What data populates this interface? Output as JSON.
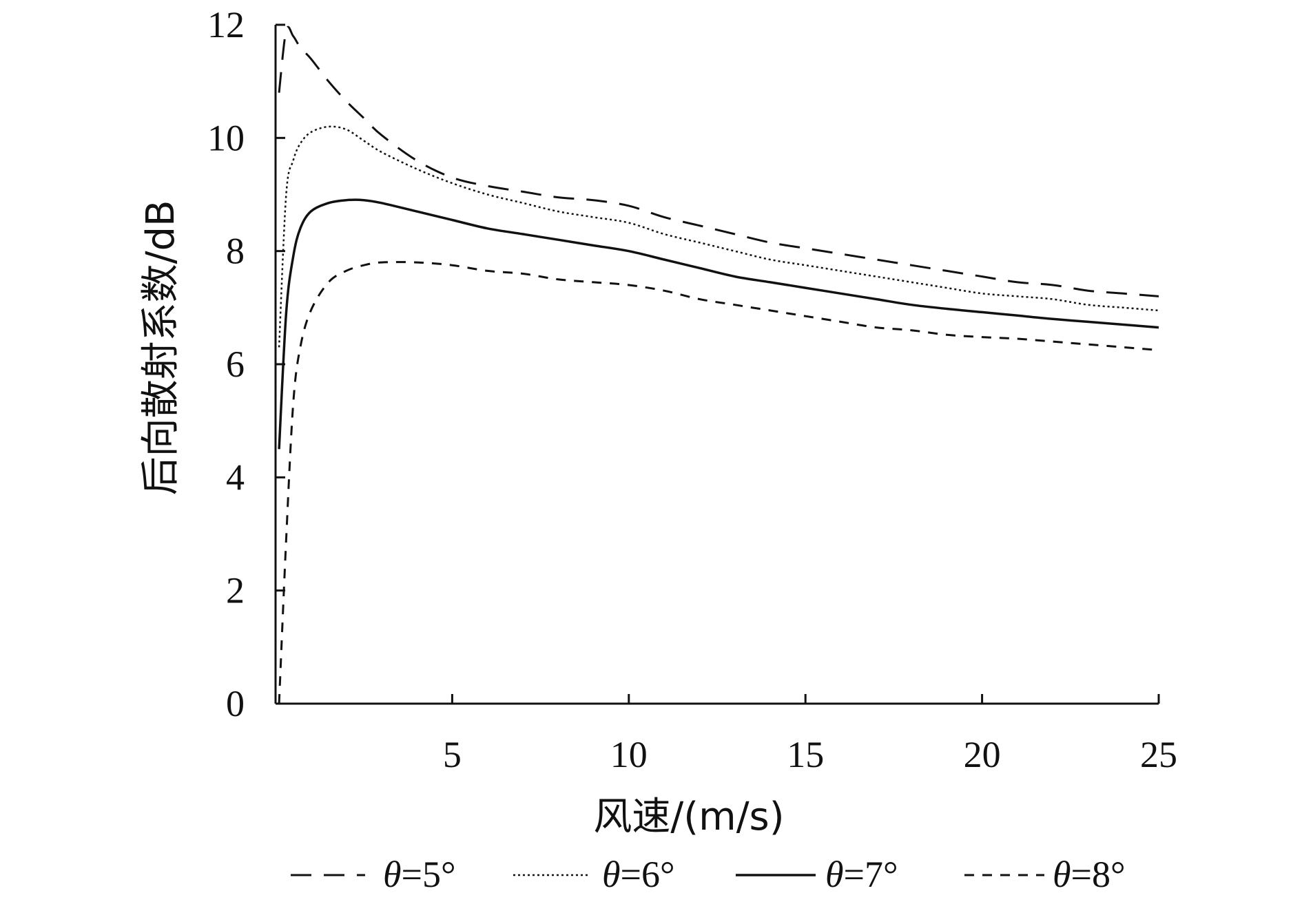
{
  "chart_data": {
    "type": "line",
    "xlabel": "风速/(m/s)",
    "ylabel": "后向散射系数/dB",
    "xlim": [
      0,
      25
    ],
    "ylim": [
      0,
      12
    ],
    "x_ticks": [
      5,
      10,
      15,
      20,
      25
    ],
    "y_ticks": [
      0,
      2,
      4,
      6,
      8,
      10,
      12
    ],
    "grid": false,
    "legend_position": "bottom",
    "x": [
      0.1,
      0.3,
      0.5,
      0.7,
      1,
      1.5,
      2,
      2.5,
      3,
      4,
      5,
      6,
      7,
      8,
      9,
      10,
      11,
      12,
      13,
      14,
      15,
      16,
      17,
      18,
      19,
      20,
      21,
      22,
      23,
      24,
      25
    ],
    "series": [
      {
        "name": "θ=5°",
        "style": "long-dash",
        "values": [
          10.8,
          11.9,
          11.8,
          11.6,
          11.4,
          11.0,
          10.65,
          10.35,
          10.05,
          9.6,
          9.3,
          9.15,
          9.05,
          8.95,
          8.9,
          8.8,
          8.6,
          8.45,
          8.3,
          8.15,
          8.05,
          7.95,
          7.85,
          7.75,
          7.65,
          7.55,
          7.45,
          7.4,
          7.3,
          7.25,
          7.2
        ]
      },
      {
        "name": "θ=6°",
        "style": "dotted",
        "values": [
          6.3,
          9.0,
          9.6,
          9.9,
          10.1,
          10.2,
          10.15,
          9.95,
          9.75,
          9.45,
          9.2,
          9.0,
          8.85,
          8.7,
          8.6,
          8.5,
          8.3,
          8.15,
          8.0,
          7.85,
          7.75,
          7.65,
          7.55,
          7.45,
          7.35,
          7.25,
          7.2,
          7.15,
          7.05,
          7.0,
          6.95
        ]
      },
      {
        "name": "θ=7°",
        "style": "solid",
        "values": [
          4.5,
          6.9,
          7.9,
          8.4,
          8.7,
          8.85,
          8.9,
          8.9,
          8.85,
          8.7,
          8.55,
          8.4,
          8.3,
          8.2,
          8.1,
          8.0,
          7.85,
          7.7,
          7.55,
          7.45,
          7.35,
          7.25,
          7.15,
          7.05,
          6.98,
          6.92,
          6.86,
          6.8,
          6.75,
          6.7,
          6.65
        ]
      },
      {
        "name": "θ=8°",
        "style": "short-dash",
        "values": [
          0.0,
          2.9,
          5.3,
          6.3,
          6.95,
          7.45,
          7.65,
          7.75,
          7.8,
          7.8,
          7.75,
          7.65,
          7.6,
          7.5,
          7.45,
          7.4,
          7.3,
          7.15,
          7.05,
          6.95,
          6.85,
          6.75,
          6.65,
          6.6,
          6.52,
          6.48,
          6.45,
          6.4,
          6.35,
          6.3,
          6.25
        ]
      }
    ]
  }
}
